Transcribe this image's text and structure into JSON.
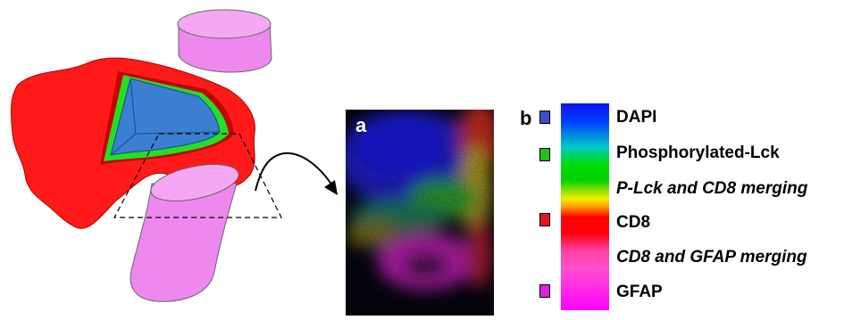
{
  "panels": {
    "a_label": "a",
    "b_label": "b"
  },
  "legend": {
    "items": [
      {
        "label": "DAPI",
        "color": "#3a4fd0",
        "swatch": true,
        "italic": false
      },
      {
        "label": "Phosphorylated-Lck",
        "color": "#20c020",
        "swatch": true,
        "italic": false
      },
      {
        "label": "P-Lck and CD8 merging",
        "color": "",
        "swatch": false,
        "italic": true
      },
      {
        "label": "CD8",
        "color": "#e01818",
        "swatch": true,
        "italic": false
      },
      {
        "label": "CD8 and GFAP merging",
        "color": "",
        "swatch": false,
        "italic": true
      },
      {
        "label": "GFAP",
        "color": "#e020e0",
        "swatch": true,
        "italic": false
      }
    ]
  },
  "colors": {
    "cell_red": "#ff1a1a",
    "nucleus_blue": "#3a7fd0",
    "lck_green": "#22e022",
    "astrocyte_pink": "#ee88ee"
  }
}
